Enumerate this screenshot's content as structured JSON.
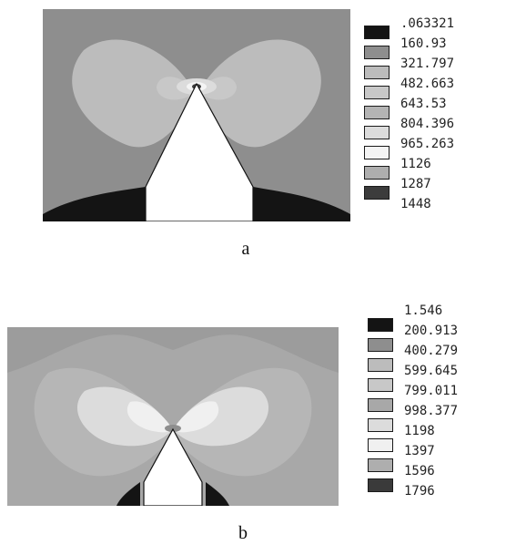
{
  "panels": [
    {
      "caption": "a",
      "legend": [
        {
          "label": ".063321",
          "color": "#141414"
        },
        {
          "label": "160.93",
          "color": "#8e8e8e"
        },
        {
          "label": "321.797",
          "color": "#bcbcbc"
        },
        {
          "label": "482.663",
          "color": "#c8c8c8"
        },
        {
          "label": "643.53",
          "color": "#b4b4b4"
        },
        {
          "label": "804.396",
          "color": "#dcdcdc"
        },
        {
          "label": "965.263",
          "color": "#f4f4f4"
        },
        {
          "label": "1126",
          "color": "#aeaeae"
        },
        {
          "label": "1287",
          "color": "#3c3c3c"
        },
        {
          "label": "1448",
          "color": "#ffffff"
        }
      ]
    },
    {
      "caption": "b",
      "legend": [
        {
          "label": "1.546",
          "color": "#ffffff"
        },
        {
          "label": "200.913",
          "color": "#141414"
        },
        {
          "label": "400.279",
          "color": "#8e8e8e"
        },
        {
          "label": "599.645",
          "color": "#bcbcbc"
        },
        {
          "label": "799.011",
          "color": "#c8c8c8"
        },
        {
          "label": "998.377",
          "color": "#a8a8a8"
        },
        {
          "label": "1198",
          "color": "#dcdcdc"
        },
        {
          "label": "1397",
          "color": "#f0f0f0"
        },
        {
          "label": "1596",
          "color": "#aeaeae"
        },
        {
          "label": "1796",
          "color": "#3a3a3a"
        }
      ]
    }
  ]
}
